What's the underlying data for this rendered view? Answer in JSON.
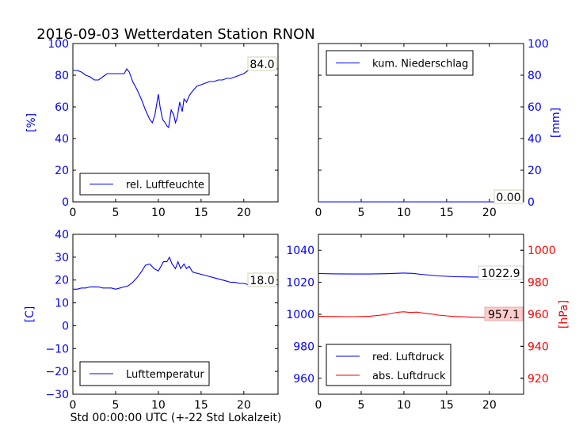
{
  "title": "2016-09-03 Wetterdaten Station RNON",
  "xlabel": "Std 00:00:00 UTC (+-22 Std Lokalzeit)",
  "colors": {
    "blue": "#0000ff",
    "red": "#ff0000",
    "axis": "#000000",
    "box_fill": "#ffffff",
    "box_fill_red": "#ffcccc"
  },
  "chart_data": [
    {
      "id": "humidity",
      "type": "line",
      "xlim": [
        0,
        24
      ],
      "ylim": [
        0,
        100
      ],
      "xticks": [
        "0",
        "5",
        "10",
        "15",
        "20"
      ],
      "yticks": [
        "0",
        "20",
        "40",
        "60",
        "80",
        "100"
      ],
      "ylabel": "[%]",
      "ylabel_color": "#0000ff",
      "legend": [
        "rel. Luftfeuchte"
      ],
      "legend_position": "lower-left",
      "last_value_label": "84.0",
      "series": [
        {
          "name": "rel. Luftfeuchte",
          "color": "#0000ff",
          "x": [
            0,
            0.5,
            1,
            1.5,
            2,
            2.5,
            3,
            3.5,
            4,
            4.5,
            5,
            5.5,
            6,
            6.3,
            6.6,
            7,
            7.5,
            8,
            8.5,
            9,
            9.3,
            9.6,
            10,
            10.2,
            10.5,
            10.8,
            11,
            11.2,
            11.5,
            11.8,
            12,
            12.2,
            12.5,
            12.8,
            13,
            13.3,
            13.6,
            14,
            14.5,
            15,
            15.5,
            16,
            16.5,
            17,
            17.5,
            18,
            18.5,
            19,
            19.5,
            20,
            20.5,
            21,
            21.5,
            22,
            22.5,
            23,
            23.5,
            24
          ],
          "y": [
            83,
            83,
            82,
            80,
            79,
            77,
            77,
            79,
            81,
            81,
            81,
            81,
            81,
            84,
            82,
            76,
            71,
            65,
            58,
            52,
            50,
            55,
            68,
            60,
            52,
            50,
            48,
            47,
            58,
            55,
            50,
            53,
            63,
            57,
            65,
            63,
            67,
            70,
            73,
            74,
            75,
            76,
            76,
            77,
            77,
            78,
            78,
            79,
            80,
            81,
            83,
            84,
            86,
            85,
            85,
            84,
            84,
            84
          ]
        }
      ]
    },
    {
      "id": "precip",
      "type": "line",
      "xlim": [
        0,
        24
      ],
      "ylim": [
        0,
        100
      ],
      "xticks": [
        "0",
        "5",
        "10",
        "15",
        "20"
      ],
      "yticks": [
        "0",
        "20",
        "40",
        "60",
        "80",
        "100"
      ],
      "ylabel": "[mm]",
      "ylabel_color": "#0000ff",
      "legend": [
        "kum. Niederschlag"
      ],
      "legend_position": "upper-left",
      "last_value_label": "0.00",
      "series": [
        {
          "name": "kum. Niederschlag",
          "color": "#0000ff",
          "x": [
            0,
            24
          ],
          "y": [
            0,
            0
          ]
        }
      ]
    },
    {
      "id": "temperature",
      "type": "line",
      "xlim": [
        0,
        24
      ],
      "ylim": [
        -30,
        40
      ],
      "xticks": [
        "0",
        "5",
        "10",
        "15",
        "20"
      ],
      "yticks": [
        "−30",
        "−20",
        "−10",
        "0",
        "10",
        "20",
        "30",
        "40"
      ],
      "ylabel": "[C]",
      "ylabel_color": "#0000ff",
      "legend": [
        "Lufttemperatur"
      ],
      "legend_position": "lower-left",
      "last_value_label": "18.0",
      "series": [
        {
          "name": "Lufttemperatur",
          "color": "#0000ff",
          "x": [
            0,
            0.5,
            1,
            1.5,
            2,
            2.5,
            3,
            3.5,
            4,
            4.5,
            5,
            5.5,
            6,
            6.5,
            7,
            7.5,
            8,
            8.5,
            9,
            9.5,
            10,
            10.3,
            10.6,
            11,
            11.3,
            11.6,
            12,
            12.3,
            12.6,
            13,
            13.3,
            13.6,
            14,
            14.5,
            15,
            15.5,
            16,
            16.5,
            17,
            17.5,
            18,
            18.5,
            19,
            19.5,
            20,
            20.5,
            21,
            21.5,
            22,
            22.5,
            23,
            23.5,
            24
          ],
          "y": [
            16,
            16,
            16.5,
            16.5,
            17,
            17,
            17,
            16.5,
            16.5,
            16.5,
            16,
            16.5,
            17,
            17.5,
            19,
            21,
            23.5,
            26.5,
            27,
            25,
            24,
            26,
            28,
            28,
            30,
            27,
            25,
            28,
            25,
            27,
            25,
            26,
            23.5,
            23,
            22.5,
            22,
            21.5,
            21,
            20.5,
            20,
            19.5,
            19,
            19,
            18.5,
            18.5,
            18,
            18,
            18,
            17.5,
            17.5,
            17.5,
            18,
            18
          ]
        }
      ]
    },
    {
      "id": "pressure",
      "type": "line",
      "xlim": [
        0,
        24
      ],
      "ylim": [
        950,
        1050
      ],
      "y2lim": [
        910,
        1010
      ],
      "xticks": [
        "0",
        "5",
        "10",
        "15",
        "20"
      ],
      "yticks": [
        "960",
        "980",
        "1000",
        "1020",
        "1040"
      ],
      "y2ticks": [
        "920",
        "940",
        "960",
        "980",
        "1000"
      ],
      "ylabel": "[hPa]",
      "ylabel_color": "#ff0000",
      "legend": [
        "red. Luftdruck",
        "abs. Luftdruck"
      ],
      "legend_position": "lower-left",
      "last_value_labels": [
        "1022.9",
        "957.1"
      ],
      "series": [
        {
          "name": "red. Luftdruck",
          "color": "#0000ff",
          "axis": "left",
          "x": [
            0,
            2,
            4,
            6,
            8,
            10,
            11,
            12,
            14,
            16,
            18,
            20,
            22,
            24
          ],
          "y": [
            1025.5,
            1025.3,
            1025.2,
            1025.2,
            1025.4,
            1025.8,
            1025.6,
            1025,
            1024,
            1023.5,
            1023.3,
            1023.2,
            1023,
            1022.9
          ]
        },
        {
          "name": "abs. Luftdruck",
          "color": "#ff0000",
          "axis": "right",
          "x": [
            0,
            2,
            4,
            5,
            6,
            7,
            8,
            9,
            9.5,
            10,
            10.5,
            11,
            11.5,
            12,
            12.5,
            13,
            13.5,
            14,
            15,
            16,
            18,
            20,
            22,
            24
          ],
          "y": [
            958.7,
            958.6,
            958.5,
            958.6,
            958.8,
            959.3,
            960,
            961,
            961.4,
            961.6,
            961.3,
            961.2,
            961.4,
            961,
            960.6,
            960.3,
            960,
            959.5,
            959,
            958.6,
            958.2,
            957.9,
            957.4,
            957.1
          ]
        }
      ]
    }
  ]
}
